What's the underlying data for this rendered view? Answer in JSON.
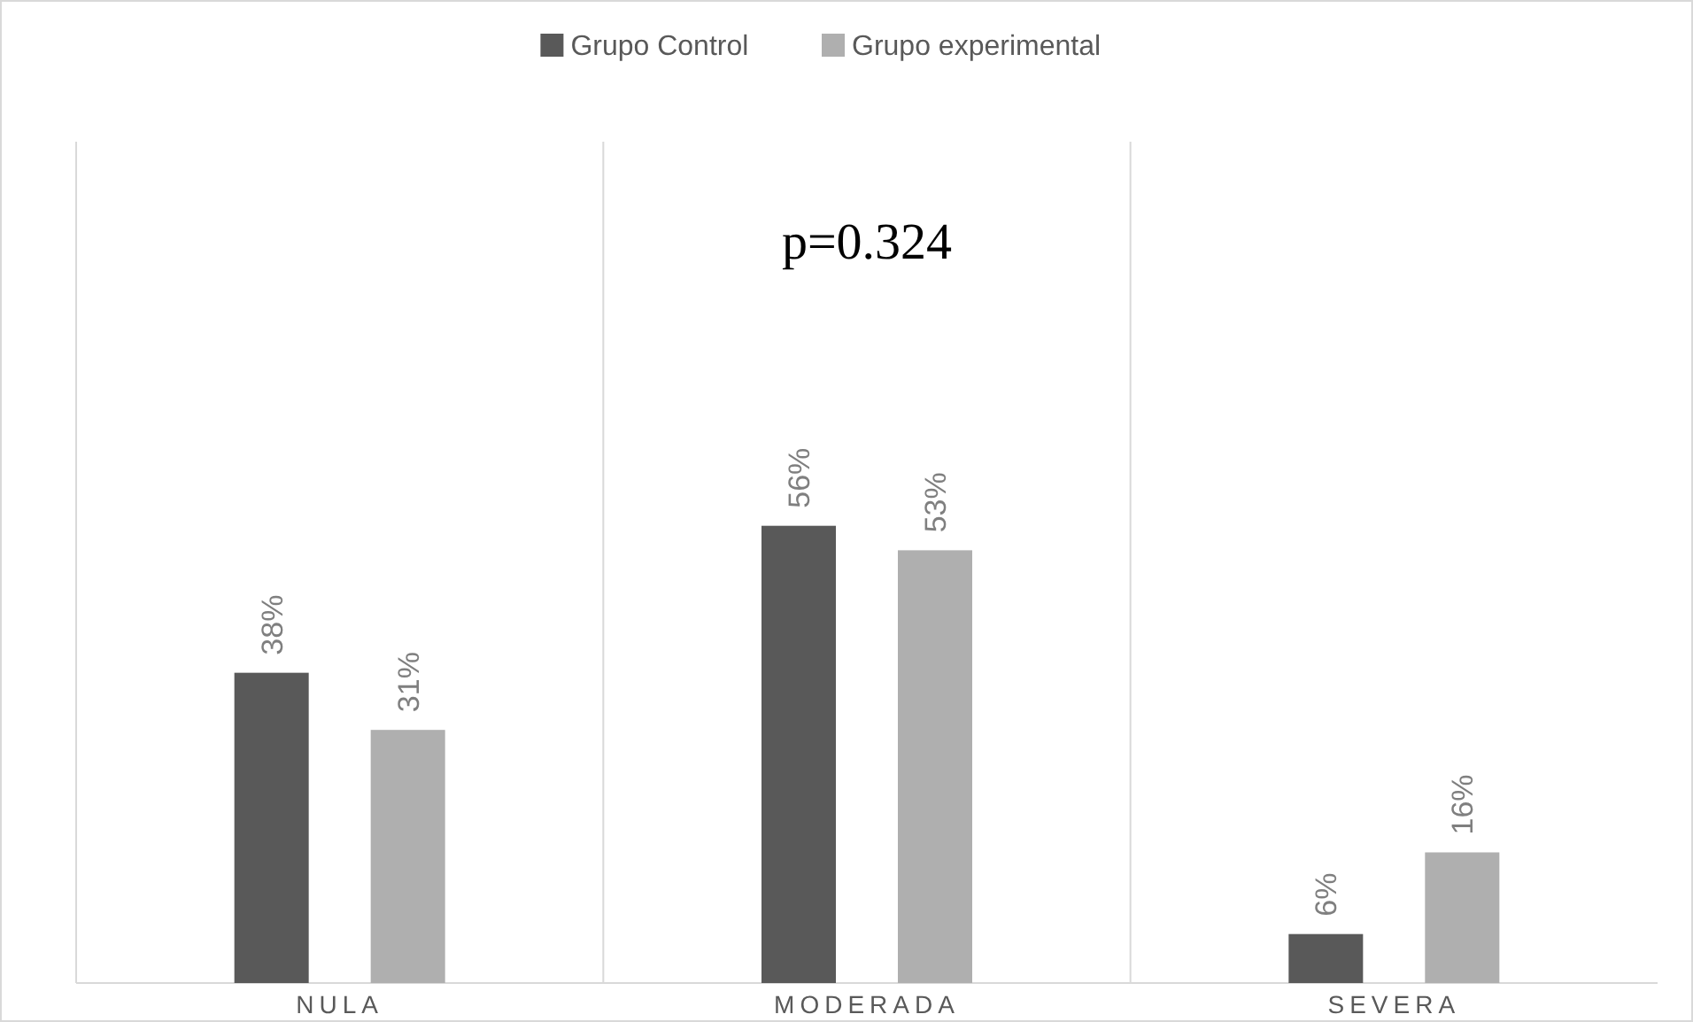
{
  "chart_data": {
    "type": "bar",
    "categories": [
      "NULA",
      "MODERADA",
      "SEVERA"
    ],
    "series": [
      {
        "name": "Grupo Control",
        "color": "#595959",
        "values": [
          38,
          56,
          6
        ],
        "value_labels": [
          "38%",
          "56%",
          "6%"
        ]
      },
      {
        "name": "Grupo experimental",
        "color": "#afafaf",
        "values": [
          31,
          53,
          16
        ],
        "value_labels": [
          "31%",
          "53%",
          "16%"
        ]
      }
    ],
    "legend": "top",
    "annotations": [
      "p=0.324"
    ]
  }
}
